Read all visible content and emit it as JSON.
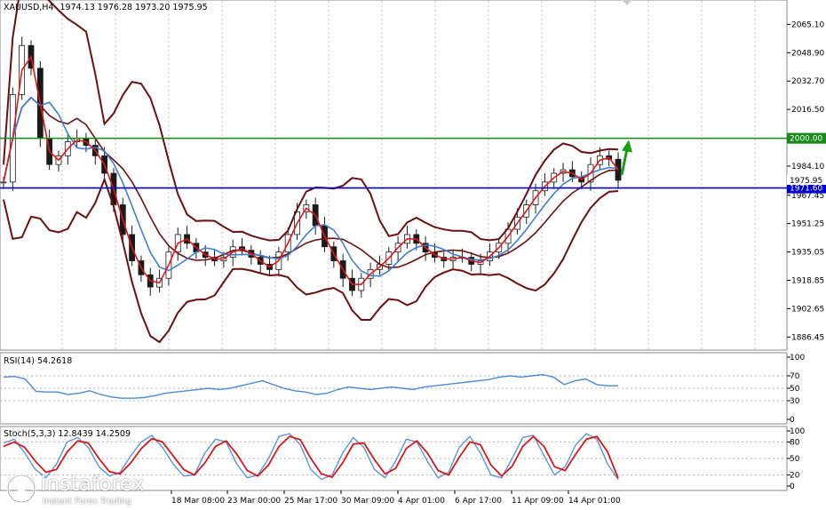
{
  "chart_data": {
    "type": "line",
    "header": {
      "symbol": "XAUUSD,H4",
      "quote": "1974.13 1976.28 1973.20 1975.95"
    },
    "price_axis": {
      "min": 1880,
      "max": 2078,
      "ticks": [
        "2065.10",
        "2048.90",
        "2032.70",
        "2016.50",
        "1984.10",
        "1967.45",
        "1951.25",
        "1935.05",
        "1918.85",
        "1902.65",
        "1886.45"
      ]
    },
    "levels": [
      {
        "label": "2000.00",
        "value": 2000.0,
        "color": "#168a16"
      },
      {
        "label": "1971.60",
        "value": 1971.6,
        "color": "#0000c8"
      }
    ],
    "current_price": {
      "label": "1975.95",
      "value": 1975.95
    },
    "time_labels": [
      "18 Mar 08:00",
      "23 Mar 00:00",
      "25 Mar 17:00",
      "30 Mar 09:00",
      "4 Apr 01:00",
      "6 Apr 17:00",
      "11 Apr 09:00",
      "14 Apr 01:00"
    ],
    "close_series": [
      1975,
      2025,
      2053,
      2040,
      2000,
      1985,
      1990,
      1998,
      2000,
      1996,
      1990,
      1980,
      1962,
      1945,
      1930,
      1922,
      1915,
      1920,
      1935,
      1945,
      1940,
      1935,
      1932,
      1930,
      1932,
      1938,
      1936,
      1932,
      1928,
      1925,
      1935,
      1945,
      1958,
      1962,
      1950,
      1938,
      1930,
      1920,
      1913,
      1920,
      1925,
      1928,
      1935,
      1940,
      1945,
      1940,
      1935,
      1932,
      1930,
      1932,
      1932,
      1928,
      1930,
      1935,
      1940,
      1948,
      1955,
      1962,
      1970,
      1975,
      1980,
      1982,
      1978,
      1975,
      1985,
      1990,
      1988,
      1976
    ],
    "rsi": {
      "label": "RSI(14) 54.2618",
      "scale": [
        "100",
        "70",
        "50",
        "30",
        "0"
      ],
      "values": [
        68,
        69,
        65,
        45,
        44,
        44,
        40,
        42,
        46,
        40,
        36,
        34,
        34,
        35,
        38,
        42,
        44,
        46,
        48,
        50,
        48,
        50,
        54,
        58,
        62,
        56,
        50,
        46,
        44,
        40,
        42,
        48,
        52,
        50,
        48,
        50,
        52,
        50,
        48,
        52,
        54,
        56,
        58,
        60,
        62,
        64,
        68,
        70,
        68,
        70,
        72,
        68,
        56,
        62,
        65,
        56,
        54,
        54
      ]
    },
    "stoch": {
      "label": "Stoch(5,3,3) 12.8439 14.2509",
      "scale": [
        "100",
        "80",
        "50",
        "20",
        "0"
      ],
      "main": [
        78,
        85,
        60,
        30,
        15,
        40,
        80,
        88,
        70,
        35,
        18,
        25,
        55,
        80,
        92,
        70,
        40,
        18,
        20,
        60,
        85,
        80,
        40,
        15,
        20,
        50,
        90,
        95,
        75,
        30,
        12,
        20,
        60,
        88,
        70,
        30,
        15,
        45,
        85,
        80,
        45,
        15,
        25,
        70,
        90,
        60,
        20,
        15,
        50,
        88,
        92,
        55,
        20,
        35,
        75,
        95,
        85,
        40,
        12
      ],
      "signal": [
        72,
        80,
        70,
        45,
        25,
        30,
        62,
        82,
        78,
        50,
        26,
        22,
        42,
        68,
        86,
        80,
        55,
        30,
        20,
        42,
        72,
        82,
        58,
        28,
        18,
        38,
        72,
        90,
        84,
        50,
        22,
        16,
        42,
        76,
        78,
        48,
        22,
        32,
        68,
        82,
        60,
        28,
        20,
        52,
        80,
        75,
        38,
        18,
        36,
        72,
        90,
        72,
        35,
        28,
        58,
        85,
        90,
        62,
        14
      ]
    }
  },
  "watermark": {
    "brand": "instaforex",
    "tagline": "Instant Forex Trading"
  }
}
